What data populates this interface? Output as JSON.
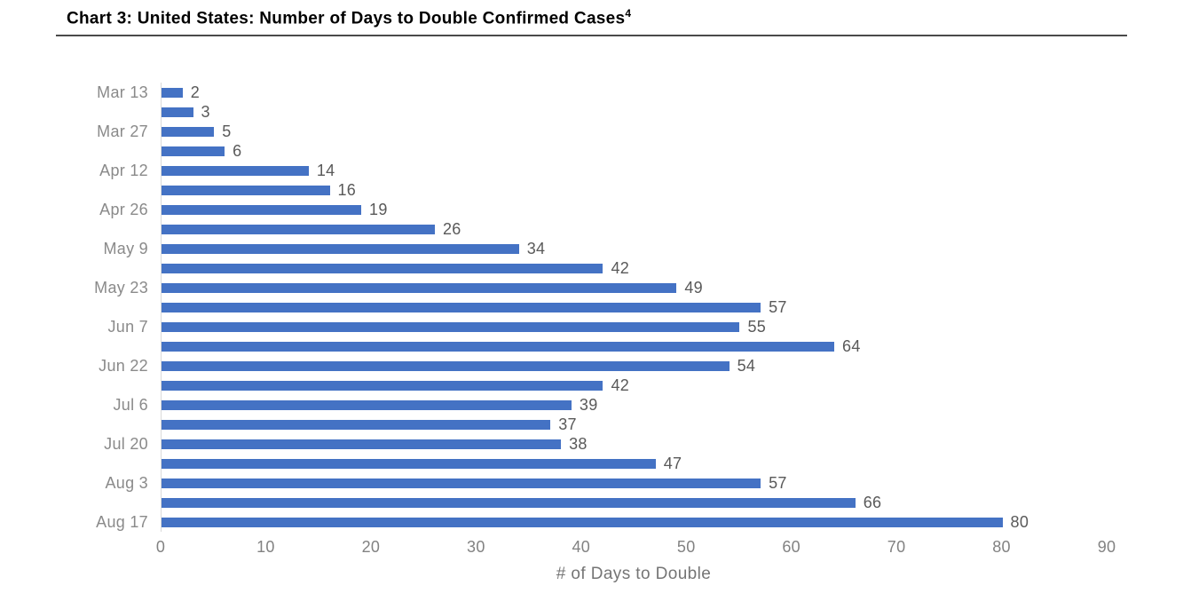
{
  "header": {
    "title": "Chart 3: United States: Number of Days to Double Confirmed Cases",
    "footnote_marker": "4"
  },
  "chart_data": {
    "type": "bar",
    "orientation": "horizontal",
    "title": "Chart 3: United States: Number of Days to Double Confirmed Cases",
    "xlabel": "# of Days to Double",
    "ylabel": "",
    "xlim": [
      0,
      90
    ],
    "x_ticks": [
      0,
      10,
      20,
      30,
      40,
      50,
      60,
      70,
      80,
      90
    ],
    "grid": false,
    "legend": false,
    "bar_color": "#4472C4",
    "axis_line_color": "#d9d9d9",
    "rows": [
      {
        "label": "Mar 13",
        "value": 2
      },
      {
        "label": "",
        "value": 3
      },
      {
        "label": "Mar 27",
        "value": 5
      },
      {
        "label": "",
        "value": 6
      },
      {
        "label": "Apr 12",
        "value": 14
      },
      {
        "label": "",
        "value": 16
      },
      {
        "label": "Apr 26",
        "value": 19
      },
      {
        "label": "",
        "value": 26
      },
      {
        "label": "May 9",
        "value": 34
      },
      {
        "label": "",
        "value": 42
      },
      {
        "label": "May 23",
        "value": 49
      },
      {
        "label": "",
        "value": 57
      },
      {
        "label": "Jun 7",
        "value": 55
      },
      {
        "label": "",
        "value": 64
      },
      {
        "label": "Jun 22",
        "value": 54
      },
      {
        "label": "",
        "value": 42
      },
      {
        "label": "Jul 6",
        "value": 39
      },
      {
        "label": "",
        "value": 37
      },
      {
        "label": "Jul 20",
        "value": 38
      },
      {
        "label": "",
        "value": 47
      },
      {
        "label": "Aug 3",
        "value": 57
      },
      {
        "label": "",
        "value": 66
      },
      {
        "label": "Aug 17",
        "value": 80
      }
    ]
  }
}
